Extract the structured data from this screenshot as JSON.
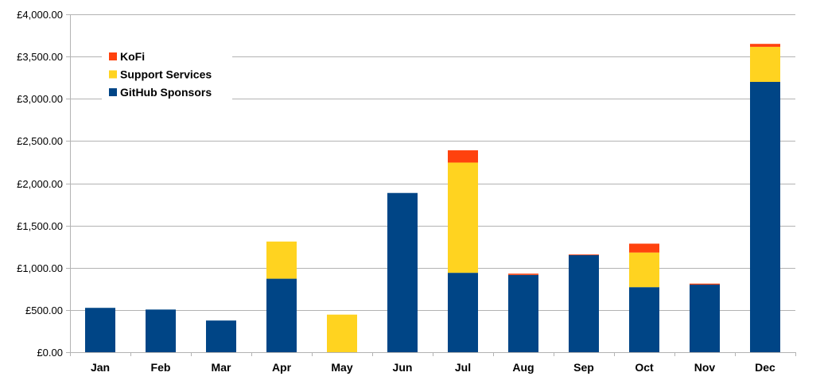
{
  "chart_data": {
    "type": "bar",
    "stacked": true,
    "title": "",
    "xlabel": "",
    "ylabel": "",
    "ylim": [
      0,
      4000
    ],
    "ytick_values": [
      0,
      500,
      1000,
      1500,
      2000,
      2500,
      3000,
      3500,
      4000
    ],
    "ytick_labels": [
      "£0.00",
      "£500.00",
      "£1,000.00",
      "£1,500.00",
      "£2,000.00",
      "£2,500.00",
      "£3,000.00",
      "£3,500.00",
      "£4,000.00"
    ],
    "grid": true,
    "legend_position": "top-left",
    "categories": [
      "Jan",
      "Feb",
      "Mar",
      "Apr",
      "May",
      "Jun",
      "Jul",
      "Aug",
      "Sep",
      "Oct",
      "Nov",
      "Dec"
    ],
    "series": [
      {
        "name": "GitHub Sponsors",
        "color": "#004586",
        "values": [
          525,
          505,
          375,
          870,
          0,
          1885,
          940,
          915,
          1150,
          770,
          800,
          3200
        ]
      },
      {
        "name": "Support Services",
        "color": "#ffd320",
        "values": [
          0,
          0,
          0,
          440,
          445,
          0,
          1305,
          0,
          0,
          410,
          0,
          415
        ]
      },
      {
        "name": "KoFi",
        "color": "#ff420e",
        "values": [
          0,
          0,
          0,
          0,
          0,
          0,
          145,
          15,
          8,
          105,
          12,
          35
        ]
      }
    ],
    "legend_order": [
      "KoFi",
      "Support Services",
      "GitHub Sponsors"
    ]
  },
  "colors": {
    "grid": "#b3b3b3",
    "axis": "#b3b3b3"
  }
}
